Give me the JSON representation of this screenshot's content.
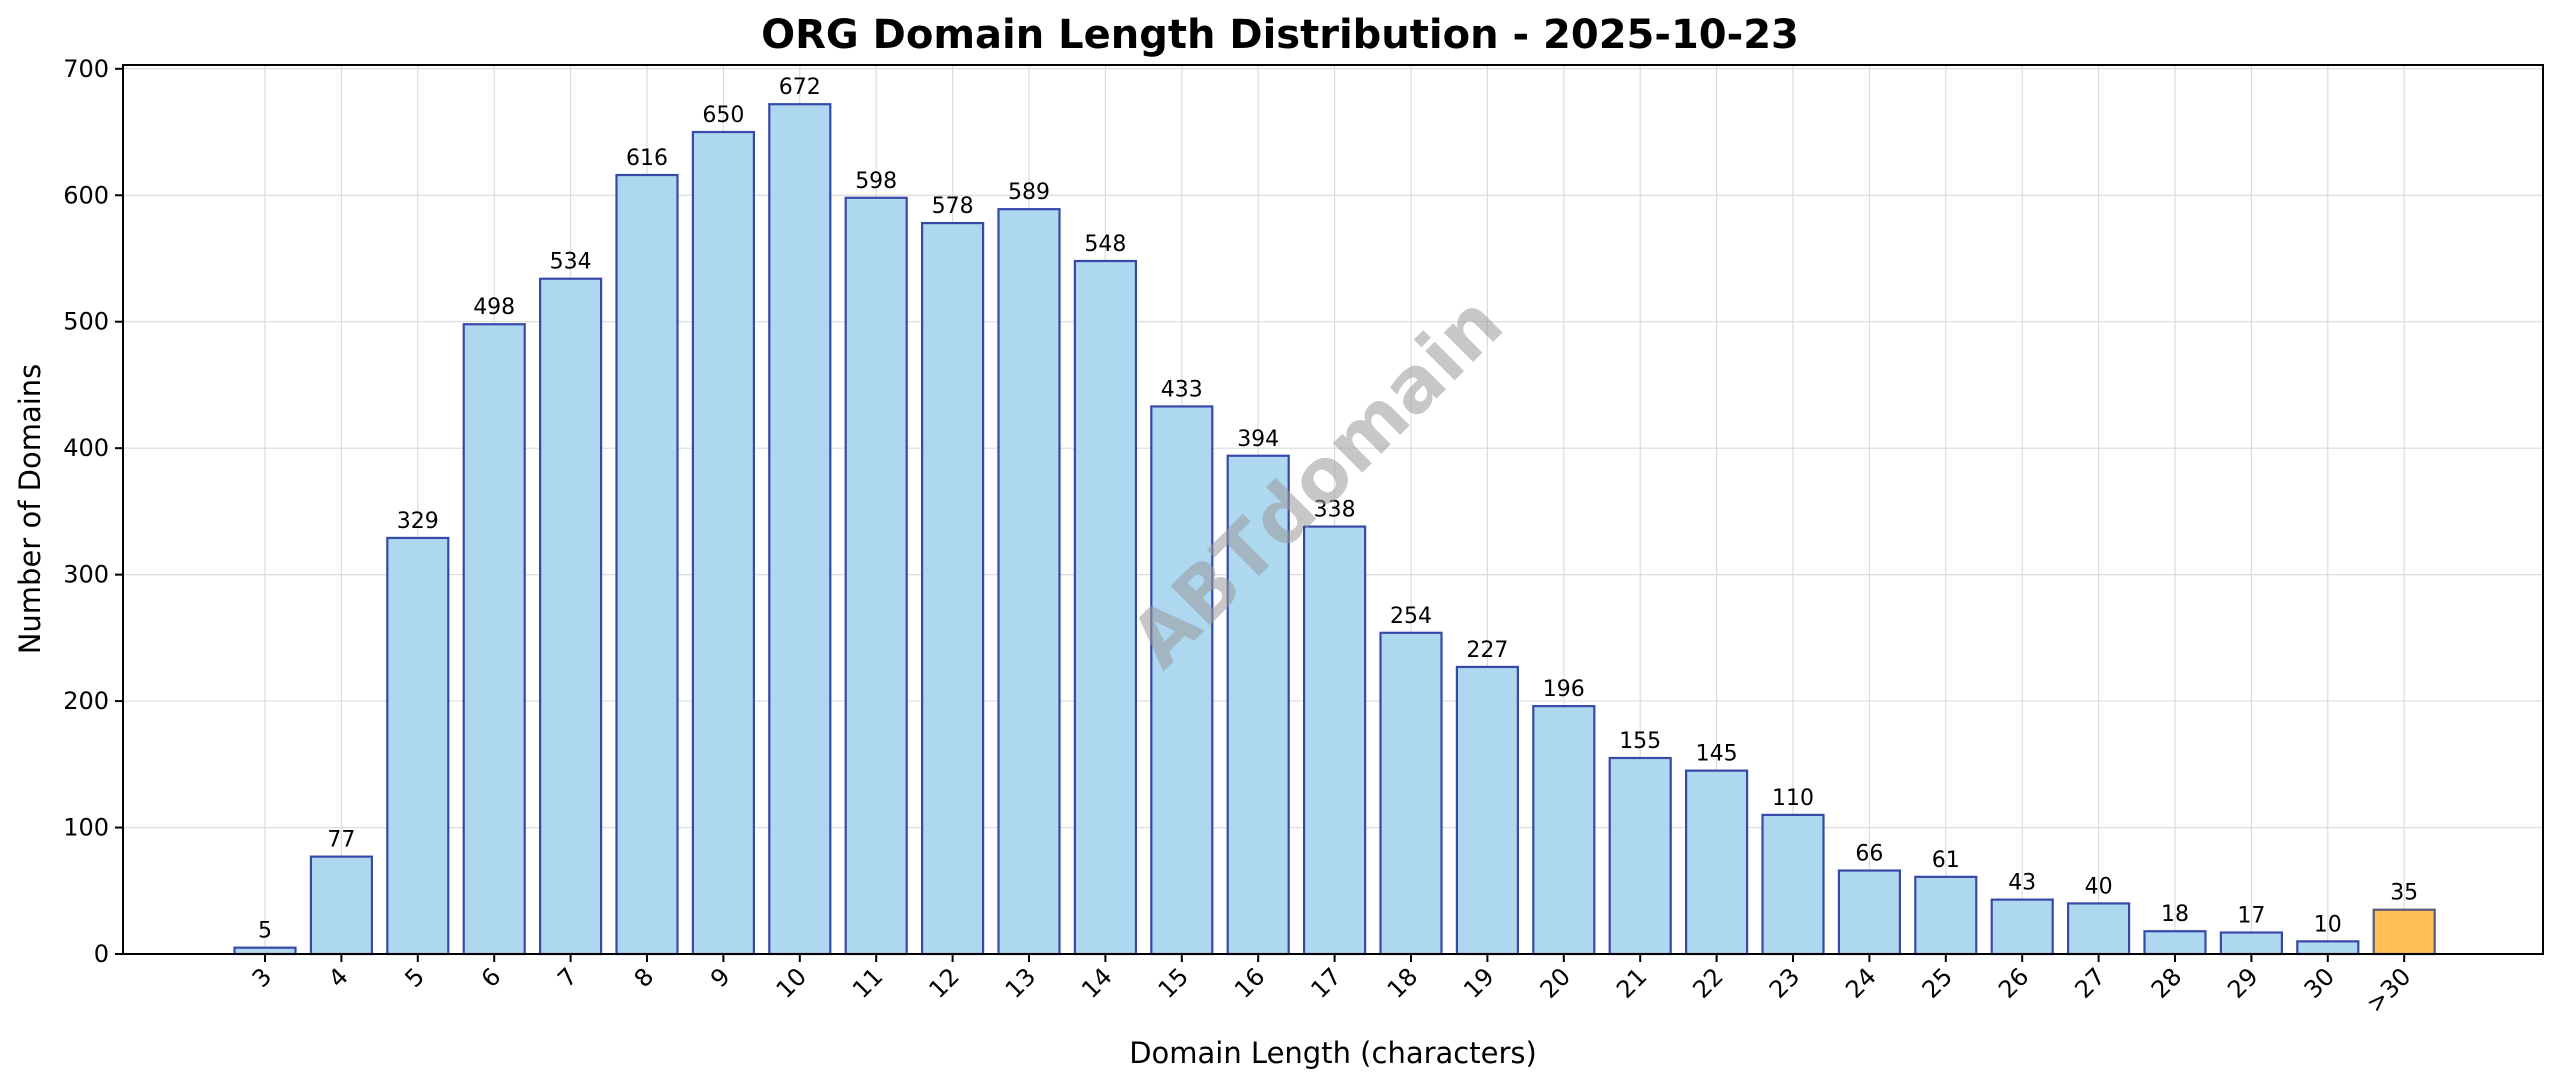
{
  "chart_data": {
    "type": "bar",
    "title": "ORG Domain Length Distribution - 2025-10-23",
    "xlabel": "Domain Length (characters)",
    "ylabel": "Number of Domains",
    "categories": [
      "3",
      "4",
      "5",
      "6",
      "7",
      "8",
      "9",
      "10",
      "11",
      "12",
      "13",
      "14",
      "15",
      "16",
      "17",
      "18",
      "19",
      "20",
      "21",
      "22",
      "23",
      "24",
      "25",
      "26",
      "27",
      "28",
      "29",
      "30",
      ">30"
    ],
    "values": [
      5,
      77,
      329,
      498,
      534,
      616,
      650,
      672,
      598,
      578,
      589,
      548,
      433,
      394,
      338,
      254,
      227,
      196,
      155,
      145,
      110,
      66,
      61,
      43,
      40,
      18,
      17,
      10,
      35
    ],
    "yticks": [
      0,
      100,
      200,
      300,
      400,
      500,
      600,
      700
    ],
    "ylim": [
      0,
      703
    ],
    "grid": true,
    "legend": "none",
    "bar_color": "#add8ef",
    "bar_edge_color": "#3848a8",
    "highlight_category": ">30",
    "highlight_color": "#ffbf55",
    "highlight_edge_color": "#5a5a7a",
    "watermark": "ABTdomain"
  }
}
